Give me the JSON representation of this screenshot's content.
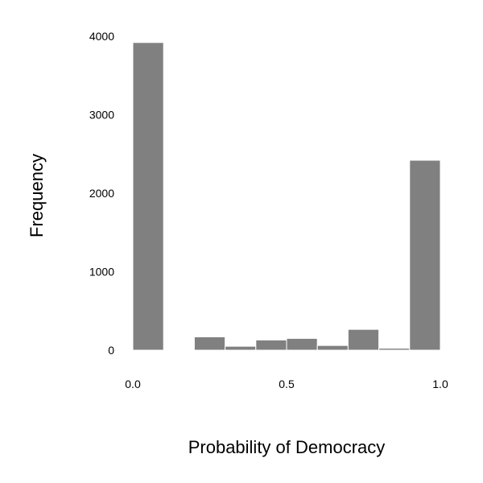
{
  "chart_data": {
    "type": "bar",
    "title": "",
    "xlabel": "Probability of Democracy",
    "ylabel": "Frequency",
    "xlim": [
      0.0,
      1.0
    ],
    "ylim": [
      0,
      4000
    ],
    "x_ticks": [
      {
        "value": 0.0,
        "label": "0.0"
      },
      {
        "value": 0.5,
        "label": "0.5"
      },
      {
        "value": 1.0,
        "label": "1.0"
      }
    ],
    "y_ticks": [
      {
        "value": 0,
        "label": "0"
      },
      {
        "value": 1000,
        "label": "1000"
      },
      {
        "value": 2000,
        "label": "2000"
      },
      {
        "value": 3000,
        "label": "3000"
      },
      {
        "value": 4000,
        "label": "4000"
      }
    ],
    "bins": [
      {
        "start": 0.0,
        "end": 0.1,
        "count": 3920
      },
      {
        "start": 0.1,
        "end": 0.2,
        "count": 0
      },
      {
        "start": 0.2,
        "end": 0.3,
        "count": 170
      },
      {
        "start": 0.3,
        "end": 0.4,
        "count": 50
      },
      {
        "start": 0.4,
        "end": 0.5,
        "count": 130
      },
      {
        "start": 0.5,
        "end": 0.6,
        "count": 150
      },
      {
        "start": 0.6,
        "end": 0.7,
        "count": 60
      },
      {
        "start": 0.7,
        "end": 0.8,
        "count": 265
      },
      {
        "start": 0.8,
        "end": 0.9,
        "count": 25
      },
      {
        "start": 0.9,
        "end": 1.0,
        "count": 2420
      }
    ],
    "bar_color": "#808080",
    "grid": false,
    "legend": "none"
  }
}
